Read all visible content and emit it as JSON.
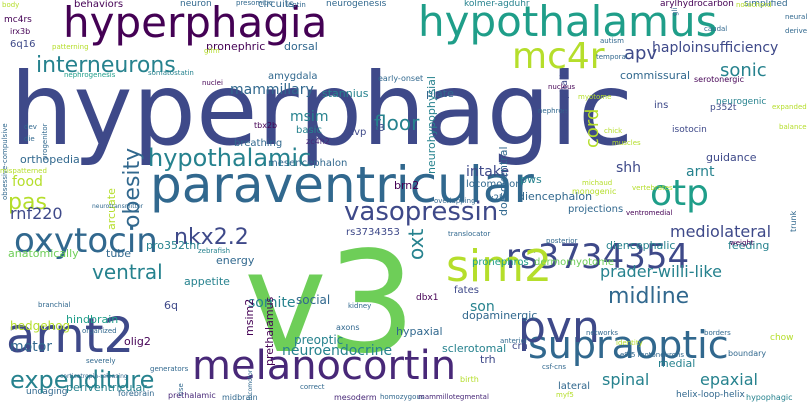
{
  "palette": {
    "viridis": [
      "#440154",
      "#482878",
      "#3e4989",
      "#31688e",
      "#26828e",
      "#1f9e89",
      "#35b779",
      "#6ece58",
      "#b5de2b",
      "#fde725"
    ]
  },
  "words": [
    {
      "text": "hyperphagic",
      "size": 100,
      "color": "#3e4989",
      "vertical": false
    },
    {
      "text": "v3",
      "size": 140,
      "color": "#6ece58",
      "vertical": false
    },
    {
      "text": "paraventricular",
      "size": 50,
      "color": "#31688e",
      "vertical": false
    },
    {
      "text": "hypothalamus",
      "size": 42,
      "color": "#1f9e89",
      "vertical": false
    },
    {
      "text": "hyperphagia",
      "size": 42,
      "color": "#440154",
      "vertical": false
    },
    {
      "text": "melanocortin",
      "size": 40,
      "color": "#482878",
      "vertical": false
    },
    {
      "text": "arnt2",
      "size": 48,
      "color": "#3e4989",
      "vertical": false
    },
    {
      "text": "oxytocin",
      "size": 34,
      "color": "#31688e",
      "vertical": false
    },
    {
      "text": "rs3734354",
      "size": 34,
      "color": "#3e4989",
      "vertical": false
    },
    {
      "text": "supraoptic",
      "size": 38,
      "color": "#31688e",
      "vertical": false
    },
    {
      "text": "sim2",
      "size": 44,
      "color": "#b5de2b",
      "vertical": false
    },
    {
      "text": "pvn",
      "size": 44,
      "color": "#3e4989",
      "vertical": false
    },
    {
      "text": "otp",
      "size": 36,
      "color": "#1f9e89",
      "vertical": false
    },
    {
      "text": "mc4r",
      "size": 36,
      "color": "#b5de2b",
      "vertical": false
    },
    {
      "text": "vasopressin",
      "size": 26,
      "color": "#3e4989",
      "vertical": false
    },
    {
      "text": "interneurons",
      "size": 22,
      "color": "#26828e",
      "vertical": false
    },
    {
      "text": "hypothalamic",
      "size": 24,
      "color": "#26828e",
      "vertical": false
    },
    {
      "text": "nkx2.2",
      "size": 22,
      "color": "#3e4989",
      "vertical": false
    },
    {
      "text": "expenditure",
      "size": 24,
      "color": "#26828e",
      "vertical": false
    },
    {
      "text": "midline",
      "size": 22,
      "color": "#31688e",
      "vertical": false
    },
    {
      "text": "ventral",
      "size": 20,
      "color": "#26828e",
      "vertical": false
    },
    {
      "text": "floor",
      "size": 20,
      "color": "#26828e",
      "vertical": false
    },
    {
      "text": "pas",
      "size": 22,
      "color": "#b5de2b",
      "vertical": false
    },
    {
      "text": "apv",
      "size": 18,
      "color": "#3e4989",
      "vertical": false
    },
    {
      "text": "sonic",
      "size": 18,
      "color": "#26828e",
      "vertical": false
    },
    {
      "text": "haploinsufficiency",
      "size": 14,
      "color": "#3e4989",
      "vertical": false
    },
    {
      "text": "prader-willi-like",
      "size": 16,
      "color": "#26828e",
      "vertical": false
    },
    {
      "text": "neuroendocrine",
      "size": 14,
      "color": "#26828e",
      "vertical": false
    },
    {
      "text": "mediolateral",
      "size": 16,
      "color": "#3e4989",
      "vertical": false
    },
    {
      "text": "spinal",
      "size": 16,
      "color": "#26828e",
      "vertical": false
    },
    {
      "text": "epaxial",
      "size": 16,
      "color": "#26828e",
      "vertical": false
    },
    {
      "text": "mammillary",
      "size": 14,
      "color": "#31688e",
      "vertical": false
    },
    {
      "text": "rnf220",
      "size": 16,
      "color": "#3e4989",
      "vertical": false
    },
    {
      "text": "food",
      "size": 14,
      "color": "#b5de2b",
      "vertical": false
    },
    {
      "text": "intake",
      "size": 14,
      "color": "#3e4989",
      "vertical": false
    },
    {
      "text": "shh",
      "size": 14,
      "color": "#3e4989",
      "vertical": false
    },
    {
      "text": "arnt",
      "size": 14,
      "color": "#26828e",
      "vertical": false
    },
    {
      "text": "msim",
      "size": 14,
      "color": "#26828e",
      "vertical": false
    },
    {
      "text": "pronephric",
      "size": 11,
      "color": "#440154",
      "vertical": false
    },
    {
      "text": "dorsal",
      "size": 11,
      "color": "#31688e",
      "vertical": false
    },
    {
      "text": "amygdala",
      "size": 10,
      "color": "#31688e",
      "vertical": false
    },
    {
      "text": "stannius",
      "size": 11,
      "color": "#26828e",
      "vertical": false
    },
    {
      "text": "commissural",
      "size": 11,
      "color": "#31688e",
      "vertical": false
    },
    {
      "text": "plate",
      "size": 11,
      "color": "#31688e",
      "vertical": false
    },
    {
      "text": "orthopedia",
      "size": 11,
      "color": "#31688e",
      "vertical": false
    },
    {
      "text": "somite",
      "size": 14,
      "color": "#26828e",
      "vertical": false
    },
    {
      "text": "son",
      "size": 14,
      "color": "#26828e",
      "vertical": false
    },
    {
      "text": "social",
      "size": 12,
      "color": "#31688e",
      "vertical": false
    },
    {
      "text": "preoptic",
      "size": 12,
      "color": "#26828e",
      "vertical": false
    },
    {
      "text": "hypaxial",
      "size": 11,
      "color": "#31688e",
      "vertical": false
    },
    {
      "text": "sclerotomal",
      "size": 11,
      "color": "#26828e",
      "vertical": false
    },
    {
      "text": "dopaminergic",
      "size": 11,
      "color": "#31688e",
      "vertical": false
    },
    {
      "text": "motor",
      "size": 14,
      "color": "#31688e",
      "vertical": false
    },
    {
      "text": "hedgehog",
      "size": 12,
      "color": "#b5de2b",
      "vertical": false
    },
    {
      "text": "olig2",
      "size": 11,
      "color": "#440154",
      "vertical": false
    },
    {
      "text": "hindbrain",
      "size": 11,
      "color": "#1f9e89",
      "vertical": false
    },
    {
      "text": "guidance",
      "size": 11,
      "color": "#3e4989",
      "vertical": false
    },
    {
      "text": "diencephalon",
      "size": 11,
      "color": "#31688e",
      "vertical": false
    },
    {
      "text": "diencephalic",
      "size": 11,
      "color": "#26828e",
      "vertical": false
    },
    {
      "text": "feeding",
      "size": 11,
      "color": "#26828e",
      "vertical": false
    },
    {
      "text": "brn2",
      "size": 11,
      "color": "#440154",
      "vertical": false
    },
    {
      "text": "pws",
      "size": 11,
      "color": "#26828e",
      "vertical": false
    },
    {
      "text": "locomotion",
      "size": 10,
      "color": "#31688e",
      "vertical": false
    },
    {
      "text": "mesencephalon",
      "size": 10,
      "color": "#31688e",
      "vertical": false
    },
    {
      "text": "breathing",
      "size": 10,
      "color": "#31688e",
      "vertical": false
    },
    {
      "text": "basic",
      "size": 10,
      "color": "#26828e",
      "vertical": false
    },
    {
      "text": "avp",
      "size": 10,
      "color": "#3e4989",
      "vertical": false
    },
    {
      "text": "p3",
      "size": 10,
      "color": "#3e4989",
      "vertical": false
    },
    {
      "text": "isotocin",
      "size": 9,
      "color": "#3e4989",
      "vertical": false
    },
    {
      "text": "ins",
      "size": 10,
      "color": "#3e4989",
      "vertical": false
    },
    {
      "text": "neurogenic",
      "size": 9,
      "color": "#26828e",
      "vertical": false
    },
    {
      "text": "p352t",
      "size": 9,
      "color": "#3e4989",
      "vertical": false
    },
    {
      "text": "appetite",
      "size": 11,
      "color": "#26828e",
      "vertical": false
    },
    {
      "text": "pro352thr",
      "size": 11,
      "color": "#26828e",
      "vertical": false
    },
    {
      "text": "energy",
      "size": 11,
      "color": "#31688e",
      "vertical": false
    },
    {
      "text": "rs3734353",
      "size": 10,
      "color": "#3e4989",
      "vertical": false
    },
    {
      "text": "pronephros",
      "size": 10,
      "color": "#1f9e89",
      "vertical": false
    },
    {
      "text": "dermomyotome",
      "size": 10,
      "color": "#6ece58",
      "vertical": false
    },
    {
      "text": "fates",
      "size": 10,
      "color": "#3e4989",
      "vertical": false
    },
    {
      "text": "projections",
      "size": 10,
      "color": "#31688e",
      "vertical": false
    },
    {
      "text": "v2b",
      "size": 9,
      "color": "#31688e",
      "vertical": false
    },
    {
      "text": "tube",
      "size": 11,
      "color": "#31688e",
      "vertical": false
    },
    {
      "text": "anatomically",
      "size": 11,
      "color": "#6ece58",
      "vertical": false
    },
    {
      "text": "6q",
      "size": 11,
      "color": "#3e4989",
      "vertical": false
    },
    {
      "text": "trh",
      "size": 11,
      "color": "#3e4989",
      "vertical": false
    },
    {
      "text": "crh",
      "size": 10,
      "color": "#3e4989",
      "vertical": false
    },
    {
      "text": "medial",
      "size": 11,
      "color": "#26828e",
      "vertical": false
    },
    {
      "text": "lateral",
      "size": 10,
      "color": "#31688e",
      "vertical": false
    },
    {
      "text": "periventricular",
      "size": 11,
      "color": "#26828e",
      "vertical": false
    },
    {
      "text": "dbx1",
      "size": 9,
      "color": "#440154",
      "vertical": false
    },
    {
      "text": "chow",
      "size": 9,
      "color": "#b5de2b",
      "vertical": false
    },
    {
      "text": "uncaging",
      "size": 9,
      "color": "#31688e",
      "vertical": false
    },
    {
      "text": "behaviors",
      "size": 10,
      "color": "#440154",
      "vertical": false
    },
    {
      "text": "neuron",
      "size": 9,
      "color": "#31688e",
      "vertical": false
    },
    {
      "text": "circuits",
      "size": 10,
      "color": "#31688e",
      "vertical": false
    },
    {
      "text": "neurogenesis",
      "size": 9,
      "color": "#31688e",
      "vertical": false
    },
    {
      "text": "kolmer-agduhr",
      "size": 9,
      "color": "#26828e",
      "vertical": false
    },
    {
      "text": "arylhydrocarbon",
      "size": 9,
      "color": "#440154",
      "vertical": false
    },
    {
      "text": "simplified",
      "size": 9,
      "color": "#31688e",
      "vertical": false
    },
    {
      "text": "serotonergic",
      "size": 8,
      "color": "#440154",
      "vertical": false
    },
    {
      "text": "mc4rs",
      "size": 9,
      "color": "#440154",
      "vertical": false
    },
    {
      "text": "irx3b",
      "size": 8,
      "color": "#440154",
      "vertical": false
    },
    {
      "text": "6q16",
      "size": 10,
      "color": "#3e4989",
      "vertical": false
    },
    {
      "text": "early-onset",
      "size": 8,
      "color": "#31688e",
      "vertical": false
    },
    {
      "text": "somatostatin",
      "size": 7,
      "color": "#26828e",
      "vertical": false
    },
    {
      "text": "nephrogenesis",
      "size": 7,
      "color": "#1f9e89",
      "vertical": false
    },
    {
      "text": "tbx2b",
      "size": 8,
      "color": "#440154",
      "vertical": false
    },
    {
      "text": "zc4h2",
      "size": 8,
      "color": "#482878",
      "vertical": false
    },
    {
      "text": "nephron",
      "size": 7,
      "color": "#31688e",
      "vertical": false
    },
    {
      "text": "zebrafish",
      "size": 7,
      "color": "#26828e",
      "vertical": false
    },
    {
      "text": "mesoderm",
      "size": 8,
      "color": "#482878",
      "vertical": false
    },
    {
      "text": "prethalamic",
      "size": 8,
      "color": "#482878",
      "vertical": false
    },
    {
      "text": "forebrain",
      "size": 8,
      "color": "#31688e",
      "vertical": false
    },
    {
      "text": "midbrain",
      "size": 8,
      "color": "#31688e",
      "vertical": false
    },
    {
      "text": "homozygous",
      "size": 7,
      "color": "#31688e",
      "vertical": false
    },
    {
      "text": "mammillotegmental",
      "size": 7,
      "color": "#482878",
      "vertical": false
    },
    {
      "text": "helix-loop-helix",
      "size": 9,
      "color": "#31688e",
      "vertical": false
    },
    {
      "text": "hypophagic",
      "size": 8,
      "color": "#26828e",
      "vertical": false
    },
    {
      "text": "boundary",
      "size": 8,
      "color": "#31688e",
      "vertical": false
    },
    {
      "text": "weight",
      "size": 7,
      "color": "#440154",
      "vertical": false
    },
    {
      "text": "trunk",
      "size": 8,
      "color": "#31688e",
      "vertical": true
    },
    {
      "text": "cord",
      "size": 18,
      "color": "#b5de2b",
      "vertical": true
    },
    {
      "text": "obesity",
      "size": 22,
      "color": "#31688e",
      "vertical": true
    },
    {
      "text": "oxt",
      "size": 20,
      "color": "#26828e",
      "vertical": true
    },
    {
      "text": "neurohypophysial",
      "size": 11,
      "color": "#26828e",
      "vertical": true
    },
    {
      "text": "dorsoventral",
      "size": 11,
      "color": "#31688e",
      "vertical": true
    },
    {
      "text": "mesencephalic",
      "size": 10,
      "color": "#3e4989",
      "vertical": true
    },
    {
      "text": "arcuate",
      "size": 11,
      "color": "#b5de2b",
      "vertical": true
    },
    {
      "text": "prethalamus",
      "size": 11,
      "color": "#440154",
      "vertical": true
    },
    {
      "text": "msim2",
      "size": 11,
      "color": "#440154",
      "vertical": true
    },
    {
      "text": "gli",
      "size": 7,
      "color": "#31688e",
      "vertical": true
    },
    {
      "text": "caudal",
      "size": 7,
      "color": "#31688e",
      "vertical": false
    },
    {
      "text": "temporal",
      "size": 7,
      "color": "#31688e",
      "vertical": false
    },
    {
      "text": "autism",
      "size": 7,
      "color": "#31688e",
      "vertical": false
    },
    {
      "text": "presomitic",
      "size": 7,
      "color": "#31688e",
      "vertical": false
    },
    {
      "text": "leptin",
      "size": 7,
      "color": "#31688e",
      "vertical": false
    },
    {
      "text": "body",
      "size": 7,
      "color": "#b5de2b",
      "vertical": false
    },
    {
      "text": "gifm",
      "size": 7,
      "color": "#b5de2b",
      "vertical": false
    },
    {
      "text": "patterning",
      "size": 7,
      "color": "#b5de2b",
      "vertical": false
    },
    {
      "text": "obsessive-compulsive",
      "size": 7,
      "color": "#31688e",
      "vertical": true
    },
    {
      "text": "nucleus",
      "size": 7,
      "color": "#440154",
      "vertical": false
    },
    {
      "text": "nuclei",
      "size": 7,
      "color": "#440154",
      "vertical": false
    },
    {
      "text": "progenitor",
      "size": 7,
      "color": "#31688e",
      "vertical": true
    },
    {
      "text": "dev",
      "size": 7,
      "color": "#31688e",
      "vertical": false
    },
    {
      "text": "die",
      "size": 7,
      "color": "#31688e",
      "vertical": false
    },
    {
      "text": "branchial",
      "size": 7,
      "color": "#31688e",
      "vertical": false
    },
    {
      "text": "mispatterned",
      "size": 7,
      "color": "#b5de2b",
      "vertical": false
    },
    {
      "text": "neurotransmitter",
      "size": 6,
      "color": "#31688e",
      "vertical": false
    },
    {
      "text": "posterior",
      "size": 7,
      "color": "#31688e",
      "vertical": false
    },
    {
      "text": "myotome",
      "size": 7,
      "color": "#b5de2b",
      "vertical": false
    },
    {
      "text": "monogenic",
      "size": 8,
      "color": "#b5de2b",
      "vertical": false
    },
    {
      "text": "vertebrates",
      "size": 7,
      "color": "#b5de2b",
      "vertical": false
    },
    {
      "text": "ventromedial",
      "size": 7,
      "color": "#440154",
      "vertical": false
    },
    {
      "text": "overlapping",
      "size": 7,
      "color": "#31688e",
      "vertical": false
    },
    {
      "text": "translocator",
      "size": 7,
      "color": "#31688e",
      "vertical": false
    },
    {
      "text": "michaud",
      "size": 7,
      "color": "#b5de2b",
      "vertical": false
    },
    {
      "text": "kidney",
      "size": 7,
      "color": "#31688e",
      "vertical": false
    },
    {
      "text": "axons",
      "size": 8,
      "color": "#31688e",
      "vertical": false
    },
    {
      "text": "anterior",
      "size": 7,
      "color": "#31688e",
      "vertical": false
    },
    {
      "text": "networks",
      "size": 7,
      "color": "#31688e",
      "vertical": false
    },
    {
      "text": "borders",
      "size": 7,
      "color": "#31688e",
      "vertical": false
    },
    {
      "text": "organized",
      "size": 7,
      "color": "#31688e",
      "vertical": false
    },
    {
      "text": "severely",
      "size": 7,
      "color": "#31688e",
      "vertical": false
    },
    {
      "text": "corticotropin-releasing",
      "size": 6,
      "color": "#31688e",
      "vertical": false
    },
    {
      "text": "generators",
      "size": 7,
      "color": "#31688e",
      "vertical": false
    },
    {
      "text": "correct",
      "size": 7,
      "color": "#31688e",
      "vertical": false
    },
    {
      "text": "birth",
      "size": 8,
      "color": "#b5de2b",
      "vertical": false
    },
    {
      "text": "csf-cns",
      "size": 7,
      "color": "#31688e",
      "vertical": false
    },
    {
      "text": "identity",
      "size": 7,
      "color": "#b5de2b",
      "vertical": false
    },
    {
      "text": "myf5",
      "size": 7,
      "color": "#b5de2b",
      "vertical": false
    },
    {
      "text": "rise",
      "size": 7,
      "color": "#31688e",
      "vertical": true
    },
    {
      "text": "locomotor",
      "size": 6,
      "color": "#31688e",
      "vertical": true
    },
    {
      "text": "derive",
      "size": 7,
      "color": "#31688e",
      "vertical": false
    },
    {
      "text": "neural",
      "size": 7,
      "color": "#31688e",
      "vertical": false
    },
    {
      "text": "balance",
      "size": 7,
      "color": "#b5de2b",
      "vertical": false
    },
    {
      "text": "expanded",
      "size": 7,
      "color": "#b5de2b",
      "vertical": false
    },
    {
      "text": "notochord",
      "size": 7,
      "color": "#b5de2b",
      "vertical": false
    },
    {
      "text": "e9.5 motoneurons",
      "size": 7,
      "color": "#31688e",
      "vertical": false
    },
    {
      "text": "chick",
      "size": 7,
      "color": "#b5de2b",
      "vertical": false
    },
    {
      "text": "muscles",
      "size": 7,
      "color": "#b5de2b",
      "vertical": false
    }
  ]
}
